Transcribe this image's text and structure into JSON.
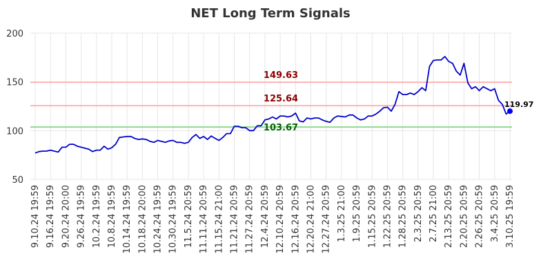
{
  "chart_data": {
    "type": "line",
    "title": "NET Long Term Signals",
    "xlabel": "",
    "ylabel": "",
    "ylim": [
      50,
      200
    ],
    "yticks": [
      50,
      100,
      150,
      200
    ],
    "grid": true,
    "x_tick_labels": [
      "9.10.24 19:59",
      "9.16.24 19:59",
      "9.20.24 20:00",
      "9.26.24 19:59",
      "10.2.24 19:59",
      "10.8.24 19:59",
      "10.14.24 19:59",
      "10.18.24 20:00",
      "10.24.24 19:59",
      "10.30.24 19:59",
      "11.5.24 20:59",
      "11.11.24 20:59",
      "11.15.24 21:00",
      "11.21.24 20:59",
      "11.27.24 20:59",
      "12.4.24 20:59",
      "12.10.24 20:59",
      "12.16.24 20:59",
      "12.20.24 21:00",
      "12.27.24 20:59",
      "1.3.25 21:00",
      "1.9.25 20:59",
      "1.15.25 20:59",
      "1.22.25 20:59",
      "1.28.25 20:59",
      "2.3.25 20:59",
      "2.7.25 21:00",
      "2.13.25 20:59",
      "2.20.25 20:59",
      "2.26.25 20:59",
      "3.4.25 20:59",
      "3.10.25 19:59"
    ],
    "series": [
      {
        "color": "#0000cc",
        "values": [
          77,
          78.5,
          79,
          79,
          80,
          79,
          78,
          83,
          83,
          86,
          86,
          84,
          83,
          82,
          81,
          78.5,
          80,
          80,
          84,
          81,
          82.5,
          86,
          93,
          93.5,
          94,
          94,
          92,
          91,
          91.5,
          91,
          89,
          88,
          90,
          89,
          88,
          89.5,
          90,
          88,
          88,
          87,
          88,
          93,
          96,
          92,
          94,
          91,
          94.5,
          92,
          90,
          93,
          97,
          97,
          104.5,
          104.5,
          103,
          103,
          100,
          100,
          105,
          105,
          111,
          112,
          114,
          112,
          115,
          115,
          114,
          115,
          118,
          110,
          109,
          113,
          112,
          113,
          113,
          111,
          109.5,
          108.5,
          113,
          115,
          114.5,
          114,
          116,
          116,
          113,
          111,
          112,
          115,
          115,
          117,
          120,
          123.5,
          124,
          120,
          127,
          140,
          137,
          137,
          138.5,
          137,
          140,
          144,
          141,
          166,
          172,
          172.5,
          172.5,
          176,
          171,
          169,
          161,
          157,
          169,
          149,
          143,
          145,
          141,
          145,
          143,
          141,
          143,
          131,
          127,
          117,
          119.97
        ]
      }
    ],
    "horizontal_lines": [
      {
        "value": 149.63,
        "label": "149.63",
        "line_color": "#ffb3b3",
        "label_color": "#8b0000"
      },
      {
        "value": 125.64,
        "label": "125.64",
        "line_color": "#ffb3b3",
        "label_color": "#8b0000"
      },
      {
        "value": 103.67,
        "label": "103.67",
        "line_color": "#8fd98f",
        "label_color": "#006400"
      }
    ],
    "last_point": {
      "label": "119.97",
      "color": "#0000ff"
    }
  }
}
